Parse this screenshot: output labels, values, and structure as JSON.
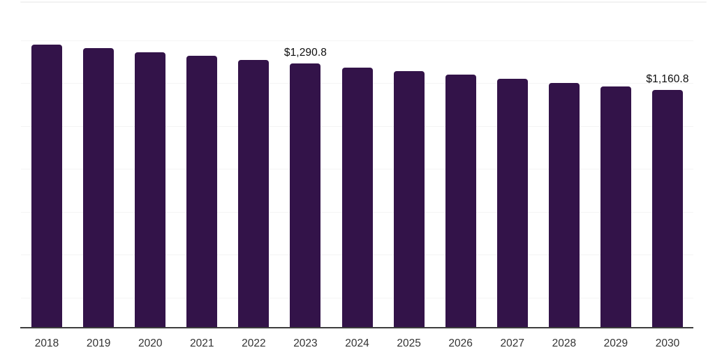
{
  "chart_data": {
    "type": "bar",
    "title": "",
    "xlabel": "",
    "ylabel": "",
    "categories": [
      "2018",
      "2019",
      "2020",
      "2021",
      "2022",
      "2023",
      "2024",
      "2025",
      "2026",
      "2027",
      "2028",
      "2029",
      "2030"
    ],
    "series": [
      {
        "name": "value",
        "values": [
          1384,
          1365,
          1347,
          1328,
          1309,
          1290.8,
          1272,
          1253,
          1235,
          1216,
          1197,
          1179,
          1160.8
        ]
      }
    ],
    "data_labels": {
      "2023": "$1,290.8",
      "2030": "$1,160.8"
    },
    "ylim": [
      0,
      1400
    ],
    "grid": "horizontal-only",
    "gridline_count": 7,
    "legend": "none",
    "colors": {
      "bar": "#331349",
      "gridline": "#f4f4f4",
      "top_border": "#f2f2f2",
      "axis_line": "#3d3d3d",
      "tick_label": "#333333",
      "data_label": "#0d0d0d"
    }
  }
}
